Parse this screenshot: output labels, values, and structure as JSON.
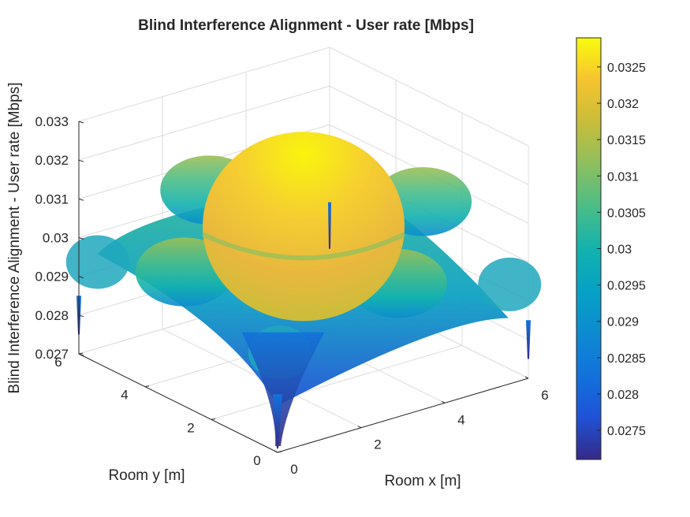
{
  "chart_data": {
    "type": "surface",
    "title": "Blind Interference Alignment - User rate [Mbps]",
    "xlabel": "Room x [m]",
    "ylabel": "Room y [m]",
    "zlabel": "Blind Interference Alignment - User rate [Mbps]",
    "xlim": [
      0,
      6
    ],
    "ylim": [
      0,
      6
    ],
    "zlim": [
      0.027,
      0.033
    ],
    "xticks": [
      "0",
      "2",
      "4",
      "6"
    ],
    "yticks": [
      "0",
      "2",
      "4",
      "6"
    ],
    "zticks": [
      "0.027",
      "0.028",
      "0.029",
      "0.03",
      "0.031",
      "0.032",
      "0.033"
    ],
    "grid": true,
    "colormap": "parula",
    "colorbar": {
      "range": [
        0.0271,
        0.0329
      ],
      "ticks": [
        "0.0275",
        "0.028",
        "0.0285",
        "0.029",
        "0.0295",
        "0.03",
        "0.0305",
        "0.031",
        "0.0315",
        "0.032",
        "0.0325"
      ]
    },
    "surface_samples": [
      {
        "x": 3,
        "y": 3,
        "z": 0.0328
      },
      {
        "x": 3,
        "y": 0.3,
        "z": 0.0305
      },
      {
        "x": 0.3,
        "y": 3,
        "z": 0.0305
      },
      {
        "x": 5.7,
        "y": 3,
        "z": 0.0305
      },
      {
        "x": 3,
        "y": 5.7,
        "z": 0.0305
      },
      {
        "x": 0.5,
        "y": 0.5,
        "z": 0.0296
      },
      {
        "x": 5.5,
        "y": 0.5,
        "z": 0.0296
      },
      {
        "x": 0.5,
        "y": 5.5,
        "z": 0.0296
      },
      {
        "x": 5.5,
        "y": 5.5,
        "z": 0.0296
      },
      {
        "x": 0,
        "y": 0,
        "z": 0.0271
      },
      {
        "x": 6,
        "y": 0,
        "z": 0.0275
      },
      {
        "x": 0,
        "y": 6,
        "z": 0.0275
      },
      {
        "x": 6,
        "y": 6,
        "z": 0.0278
      }
    ]
  }
}
